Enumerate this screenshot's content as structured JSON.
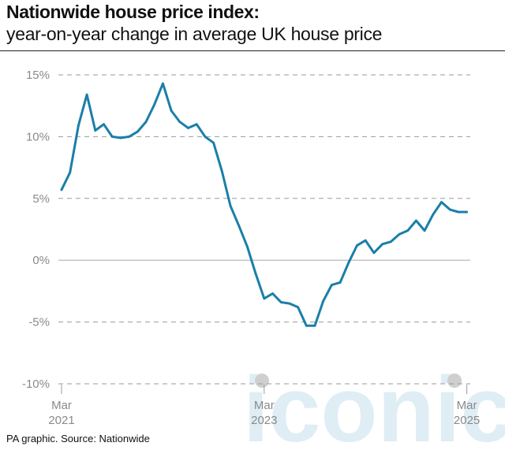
{
  "header": {
    "title": "Nationwide house price index:",
    "subtitle": "year-on-year change in average UK house price"
  },
  "footer": {
    "source": "PA graphic. Source: Nationwide"
  },
  "watermark": {
    "text": "iconic"
  },
  "colors": {
    "line": "#1a7fa8",
    "grid": "#9a9a9a",
    "zero_line": "#b0b0b0",
    "tick_text": "#8a8a8a",
    "watermark": "#dcecf4"
  },
  "chart_data": {
    "type": "line",
    "title": "Nationwide house price index:",
    "subtitle": "year-on-year change in average UK house price",
    "xlabel": "",
    "ylabel": "",
    "ylim": [
      -10,
      15
    ],
    "yticks": [
      15,
      10,
      5,
      0,
      -5,
      -10
    ],
    "ytick_labels": [
      "15%",
      "10%",
      "5%",
      "0%",
      "-5%",
      "-10%"
    ],
    "xticks": [
      {
        "date": "2021-03",
        "line1": "Mar",
        "line2": "2021"
      },
      {
        "date": "2023-03",
        "line1": "Mar",
        "line2": "2023"
      },
      {
        "date": "2025-03",
        "line1": "Mar",
        "line2": "2025"
      }
    ],
    "grid": "horizontal dashed",
    "series": [
      {
        "x": [
          "2021-03",
          "2021-04",
          "2021-05",
          "2021-06",
          "2021-07",
          "2021-08",
          "2021-09",
          "2021-10",
          "2021-11",
          "2021-12",
          "2022-01",
          "2022-02",
          "2022-03",
          "2022-04",
          "2022-05",
          "2022-06",
          "2022-07",
          "2022-08",
          "2022-09",
          "2022-10",
          "2022-11",
          "2022-12",
          "2023-01",
          "2023-02",
          "2023-03",
          "2023-04",
          "2023-05",
          "2023-06",
          "2023-07",
          "2023-08",
          "2023-09",
          "2023-10",
          "2023-11",
          "2023-12",
          "2024-01",
          "2024-02",
          "2024-03",
          "2024-04",
          "2024-05",
          "2024-06",
          "2024-07",
          "2024-08",
          "2024-09",
          "2024-10",
          "2024-11",
          "2024-12",
          "2025-01",
          "2025-02",
          "2025-03"
        ],
        "values": [
          5.7,
          7.1,
          10.9,
          13.4,
          10.5,
          11.0,
          10.0,
          9.9,
          10.0,
          10.4,
          11.2,
          12.6,
          14.3,
          12.1,
          11.2,
          10.7,
          11.0,
          10.0,
          9.5,
          7.2,
          4.4,
          2.8,
          1.1,
          -1.1,
          -3.1,
          -2.7,
          -3.4,
          -3.5,
          -3.8,
          -5.3,
          -5.3,
          -3.3,
          -2.0,
          -1.8,
          -0.2,
          1.2,
          1.6,
          0.6,
          1.3,
          1.5,
          2.1,
          2.4,
          3.2,
          2.4,
          3.7,
          4.7,
          4.1,
          3.9,
          3.9
        ]
      }
    ]
  }
}
